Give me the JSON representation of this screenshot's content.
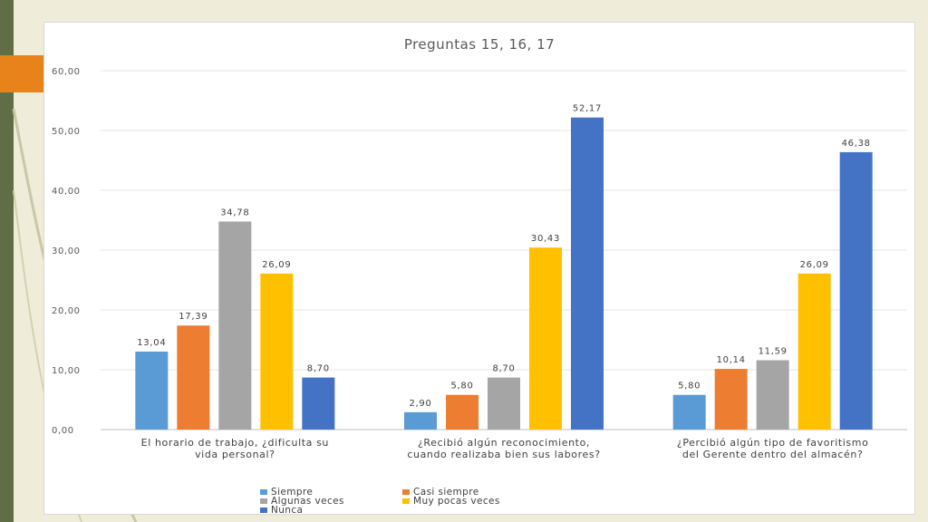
{
  "colors": {
    "background": "#efedd9",
    "sidebar": "#5f6e45",
    "accent": "#e8821a",
    "grid": "#e6e6e6"
  },
  "chart_data": {
    "type": "bar",
    "title": "Preguntas 15, 16, 17",
    "xlabel": "",
    "ylabel": "",
    "ylim": [
      0,
      60
    ],
    "yticks": [
      "0,00",
      "10,00",
      "20,00",
      "30,00",
      "40,00",
      "50,00",
      "60,00"
    ],
    "grid": true,
    "legend_position": "bottom",
    "categories": [
      [
        "El horario de trabajo, ¿dificulta su",
        "vida personal?"
      ],
      [
        "¿Recibió algún reconocimiento,",
        "cuando realizaba bien sus labores?"
      ],
      [
        "¿Percibió algún tipo de favoritismo",
        "del Gerente dentro del almacén?"
      ]
    ],
    "series": [
      {
        "name": "Siempre",
        "color": "#5b9bd5",
        "values": [
          13.04,
          2.9,
          5.8
        ],
        "labels": [
          "13,04",
          "2,90",
          "5,80"
        ]
      },
      {
        "name": "Casi siempre",
        "color": "#ed7d31",
        "values": [
          17.39,
          5.8,
          10.14
        ],
        "labels": [
          "17,39",
          "5,80",
          "10,14"
        ]
      },
      {
        "name": "Algunas veces",
        "color": "#a5a5a5",
        "values": [
          34.78,
          8.7,
          11.59
        ],
        "labels": [
          "34,78",
          "8,70",
          "11,59"
        ]
      },
      {
        "name": "Muy pocas veces",
        "color": "#ffc000",
        "values": [
          26.09,
          30.43,
          26.09
        ],
        "labels": [
          "26,09",
          "30,43",
          "26,09"
        ]
      },
      {
        "name": "Nunca",
        "color": "#4472c4",
        "values": [
          8.7,
          52.17,
          46.38
        ],
        "labels": [
          "8,70",
          "52,17",
          "46,38"
        ]
      }
    ]
  }
}
